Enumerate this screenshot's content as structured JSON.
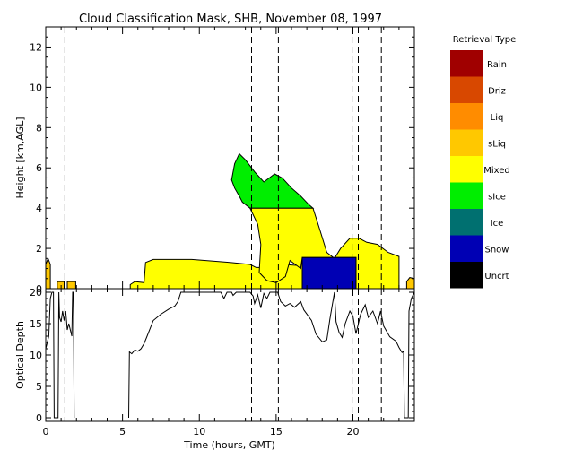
{
  "chart_data": {
    "type": "area",
    "title": "Cloud Classification Mask, SHB, November 08, 1997",
    "x_axis": {
      "label": "Time (hours, GMT)",
      "range": [
        0,
        24
      ],
      "ticks": [
        0,
        5,
        10,
        15,
        20
      ]
    },
    "panels": [
      {
        "id": "mask",
        "ylabel": "Height [km,AGL]",
        "ylim": [
          0,
          13
        ],
        "yticks": [
          0,
          2,
          4,
          6,
          8,
          10,
          12
        ],
        "regions": [
          {
            "class": "sLiq",
            "points": [
              [
                0,
                1.2
              ],
              [
                0.15,
                1.5
              ],
              [
                0.3,
                1.2
              ],
              [
                0.3,
                0
              ],
              [
                0,
                0
              ]
            ]
          },
          {
            "class": "sLiq",
            "points": [
              [
                0.75,
                0.35
              ],
              [
                1.2,
                0.35
              ],
              [
                1.2,
                0
              ],
              [
                0.75,
                0
              ]
            ]
          },
          {
            "class": "sLiq",
            "points": [
              [
                1.4,
                0.35
              ],
              [
                1.95,
                0.35
              ],
              [
                1.95,
                0
              ],
              [
                1.4,
                0
              ]
            ]
          },
          {
            "class": "sLiq",
            "points": [
              [
                23.5,
                0.35
              ],
              [
                23.7,
                0.55
              ],
              [
                24,
                0.5
              ],
              [
                24,
                0
              ],
              [
                23.5,
                0
              ]
            ]
          },
          {
            "class": "Mixed",
            "points": [
              [
                5.5,
                0.2
              ],
              [
                5.8,
                0.35
              ],
              [
                6.4,
                0.3
              ],
              [
                6.5,
                1.3
              ],
              [
                7,
                1.45
              ],
              [
                9.5,
                1.45
              ],
              [
                12,
                1.3
              ],
              [
                13.3,
                1.2
              ],
              [
                13.7,
                1.05
              ],
              [
                14.8,
                1.05
              ],
              [
                15,
                1.3
              ],
              [
                15.5,
                1.2
              ],
              [
                16.5,
                1.15
              ],
              [
                16.7,
                1.5
              ],
              [
                16.7,
                0
              ],
              [
                5.5,
                0
              ]
            ]
          },
          {
            "class": "sIce",
            "points": [
              [
                12.1,
                5.4
              ],
              [
                12.3,
                6.2
              ],
              [
                12.6,
                6.7
              ],
              [
                13,
                6.4
              ],
              [
                13.6,
                5.8
              ],
              [
                14.2,
                5.3
              ],
              [
                14.9,
                5.7
              ],
              [
                15.4,
                5.5
              ],
              [
                16,
                5
              ],
              [
                16.6,
                4.6
              ],
              [
                17.1,
                4.2
              ],
              [
                17.4,
                4
              ],
              [
                13.3,
                4
              ],
              [
                12.8,
                4.3
              ],
              [
                12.6,
                4.6
              ],
              [
                12.3,
                5
              ]
            ]
          },
          {
            "class": "Mixed",
            "points": [
              [
                13.3,
                4
              ],
              [
                17.4,
                4
              ],
              [
                17.9,
                2.8
              ],
              [
                18.3,
                1.8
              ],
              [
                18.8,
                1.5
              ],
              [
                19.2,
                2
              ],
              [
                19.8,
                2.5
              ],
              [
                20.4,
                2.5
              ],
              [
                20.9,
                2.3
              ],
              [
                21.6,
                2.2
              ],
              [
                22.3,
                1.8
              ],
              [
                23,
                1.6
              ],
              [
                23,
                0
              ],
              [
                20.2,
                0
              ],
              [
                20.2,
                1.55
              ],
              [
                16.7,
                1.55
              ],
              [
                16.6,
                1
              ],
              [
                15.9,
                1.4
              ],
              [
                15.6,
                0.6
              ],
              [
                15,
                0.3
              ],
              [
                14.4,
                0.4
              ],
              [
                13.9,
                0.8
              ],
              [
                14,
                2.2
              ],
              [
                13.8,
                3.2
              ]
            ]
          },
          {
            "class": "Snow",
            "points": [
              [
                16.7,
                1.55
              ],
              [
                20.2,
                1.55
              ],
              [
                20.2,
                0
              ],
              [
                16.7,
                0
              ]
            ]
          }
        ],
        "dashed_lines": [
          1.25,
          13.4,
          15.15,
          18.25,
          19.95,
          20.35,
          21.85
        ]
      },
      {
        "id": "optical_depth",
        "ylabel": "Optical Depth",
        "ylim": [
          0,
          20
        ],
        "yticks": [
          0,
          5,
          10,
          15,
          20
        ],
        "series": [
          {
            "points": [
              [
                0,
                11
              ],
              [
                0.2,
                13
              ],
              [
                0.3,
                19
              ],
              [
                0.4,
                20
              ],
              [
                0.5,
                20
              ],
              [
                0.55,
                0
              ],
              [
                0.8,
                0
              ],
              [
                0.85,
                20
              ],
              [
                0.9,
                16
              ],
              [
                1,
                15.3
              ],
              [
                1.1,
                17
              ],
              [
                1.2,
                15.5
              ],
              [
                1.3,
                17
              ],
              [
                1.4,
                14
              ],
              [
                1.5,
                15
              ],
              [
                1.7,
                13
              ],
              [
                1.75,
                20
              ],
              [
                1.8,
                20
              ],
              [
                1.85,
                0
              ]
            ]
          },
          {
            "points": [
              [
                5.4,
                0
              ],
              [
                5.45,
                10.5
              ],
              [
                5.6,
                10.2
              ],
              [
                5.8,
                10.8
              ],
              [
                6,
                10.6
              ],
              [
                6.2,
                11
              ],
              [
                6.4,
                11.8
              ],
              [
                6.6,
                13
              ],
              [
                7,
                15.5
              ],
              [
                7.5,
                16.5
              ],
              [
                8,
                17.3
              ],
              [
                8.4,
                17.8
              ],
              [
                8.6,
                18.5
              ],
              [
                8.8,
                20
              ],
              [
                11.4,
                20
              ],
              [
                11.6,
                19
              ],
              [
                11.8,
                20
              ],
              [
                12.1,
                20
              ],
              [
                12.2,
                19.5
              ],
              [
                12.4,
                20
              ],
              [
                13.3,
                20
              ],
              [
                13.5,
                19.4
              ],
              [
                13.6,
                18.2
              ],
              [
                13.8,
                19.6
              ],
              [
                14,
                17.5
              ],
              [
                14.2,
                19.8
              ],
              [
                14.4,
                19
              ],
              [
                14.6,
                20
              ],
              [
                15.1,
                20
              ],
              [
                15.3,
                18.5
              ],
              [
                15.6,
                17.8
              ],
              [
                15.9,
                18.2
              ],
              [
                16.2,
                17.6
              ],
              [
                16.6,
                18.5
              ],
              [
                16.8,
                17.2
              ],
              [
                17.3,
                15.5
              ],
              [
                17.6,
                13.3
              ],
              [
                18,
                12.1
              ],
              [
                18.3,
                12.4
              ],
              [
                18.5,
                15.7
              ],
              [
                18.8,
                20
              ],
              [
                18.9,
                15.3
              ],
              [
                19.1,
                13.6
              ],
              [
                19.3,
                12.8
              ],
              [
                19.5,
                15
              ],
              [
                19.8,
                17
              ],
              [
                20,
                16.2
              ],
              [
                20.2,
                13.4
              ],
              [
                20.5,
                16.5
              ],
              [
                20.8,
                18
              ],
              [
                21,
                16
              ],
              [
                21.3,
                17
              ],
              [
                21.6,
                15
              ],
              [
                21.8,
                17
              ],
              [
                22,
                14.6
              ],
              [
                22.4,
                12.9
              ],
              [
                22.8,
                12.2
              ],
              [
                23,
                11.2
              ],
              [
                23.2,
                10.4
              ],
              [
                23.3,
                10.6
              ],
              [
                23.35,
                0
              ],
              [
                23.6,
                0
              ],
              [
                23.65,
                17
              ],
              [
                23.8,
                19
              ],
              [
                24,
                20
              ]
            ]
          }
        ]
      }
    ],
    "legend": {
      "title": "Retrieval Type",
      "placement": "right",
      "items": [
        {
          "label": "Rain",
          "color": "#a00000"
        },
        {
          "label": "Driz",
          "color": "#d84800"
        },
        {
          "label": "Liq",
          "color": "#ff8c00"
        },
        {
          "label": "sLiq",
          "color": "#ffc800"
        },
        {
          "label": "Mixed",
          "color": "#ffff00"
        },
        {
          "label": "sIce",
          "color": "#00ee00"
        },
        {
          "label": "Ice",
          "color": "#007070"
        },
        {
          "label": "Snow",
          "color": "#0000b4"
        },
        {
          "label": "Uncrt",
          "color": "#000000"
        }
      ]
    }
  }
}
